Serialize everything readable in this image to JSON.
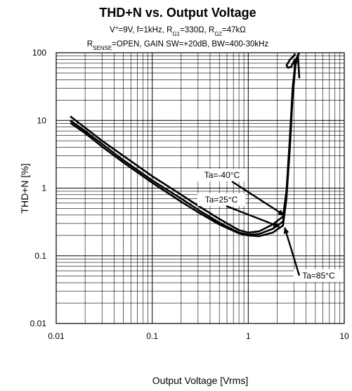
{
  "chart_data": {
    "type": "line",
    "title": "THD+N vs. Output Voltage",
    "subtitle1": {
      "p1": "V",
      "p1sup": "+",
      "p2": "=9V, f=1kHz, R",
      "p2sub": "G1",
      "p3": "=330Ω, R",
      "p3sub": "G2",
      "p4": "=47kΩ"
    },
    "subtitle2": {
      "p1": "R",
      "p1sub": "SENSE",
      "p2": "=OPEN, GAIN SW=+20dB, BW=400-30kHz"
    },
    "xlabel": "Output Voltage [Vrms]",
    "ylabel": "THD+N [%]",
    "xscale": "log",
    "yscale": "log",
    "xlim": [
      0.01,
      10
    ],
    "ylim": [
      0.01,
      100
    ],
    "grid": true,
    "x_tick_labels": [
      "0.01",
      "0.1",
      "1",
      "10"
    ],
    "y_tick_labels": [
      "0.01",
      "0.1",
      "1",
      "10",
      "100"
    ],
    "x_ticks": [
      0.01,
      0.1,
      1,
      10
    ],
    "y_ticks": [
      0.01,
      0.1,
      1,
      10,
      100
    ],
    "series": [
      {
        "name": "Ta=-40°C",
        "points": [
          [
            0.014,
            11.5
          ],
          [
            0.02,
            7.8
          ],
          [
            0.03,
            5.0
          ],
          [
            0.05,
            3.0
          ],
          [
            0.1,
            1.5
          ],
          [
            0.2,
            0.8
          ],
          [
            0.3,
            0.55
          ],
          [
            0.5,
            0.35
          ],
          [
            0.8,
            0.24
          ],
          [
            1.0,
            0.22
          ],
          [
            1.3,
            0.23
          ],
          [
            1.8,
            0.29
          ],
          [
            2.3,
            0.38
          ],
          [
            2.5,
            0.9
          ],
          [
            2.7,
            5.0
          ],
          [
            2.9,
            30.0
          ],
          [
            3.1,
            75.0
          ],
          [
            3.4,
            100.0
          ]
        ]
      },
      {
        "name": "Ta=25°C",
        "points": [
          [
            0.014,
            10.0
          ],
          [
            0.02,
            7.0
          ],
          [
            0.03,
            4.5
          ],
          [
            0.05,
            2.6
          ],
          [
            0.1,
            1.3
          ],
          [
            0.2,
            0.7
          ],
          [
            0.3,
            0.48
          ],
          [
            0.5,
            0.31
          ],
          [
            0.8,
            0.22
          ],
          [
            1.0,
            0.205
          ],
          [
            1.3,
            0.21
          ],
          [
            1.8,
            0.25
          ],
          [
            2.3,
            0.32
          ],
          [
            2.5,
            0.8
          ],
          [
            2.7,
            4.0
          ],
          [
            2.9,
            25.0
          ],
          [
            3.1,
            70.0
          ],
          [
            3.3,
            95.0
          ]
        ]
      },
      {
        "name": "Ta=85°C",
        "points": [
          [
            0.014,
            9.2
          ],
          [
            0.02,
            6.5
          ],
          [
            0.03,
            4.1
          ],
          [
            0.05,
            2.4
          ],
          [
            0.1,
            1.2
          ],
          [
            0.2,
            0.63
          ],
          [
            0.3,
            0.44
          ],
          [
            0.5,
            0.29
          ],
          [
            0.8,
            0.215
          ],
          [
            1.0,
            0.2
          ],
          [
            1.3,
            0.195
          ],
          [
            1.8,
            0.22
          ],
          [
            2.3,
            0.28
          ],
          [
            2.5,
            0.7
          ],
          [
            2.7,
            3.5
          ],
          [
            2.9,
            22.0
          ],
          [
            3.1,
            65.0
          ],
          [
            3.3,
            90.0
          ]
        ]
      }
    ],
    "overload_hook": [
      [
        3.4,
        42.0
      ],
      [
        3.3,
        88.0
      ],
      [
        3.0,
        75.0
      ],
      [
        2.8,
        62.0
      ],
      [
        2.6,
        60.0
      ],
      [
        2.5,
        65.0
      ],
      [
        2.7,
        78.0
      ],
      [
        3.1,
        96.0
      ]
    ],
    "annotations": [
      {
        "text": "Ta=-40°C",
        "target": [
          2.35,
          0.4
        ]
      },
      {
        "text": "Ta=25°C",
        "target": [
          2.1,
          0.27
        ]
      },
      {
        "text": "Ta=85°C",
        "target": [
          2.4,
          0.26
        ]
      }
    ]
  },
  "colors": {
    "line": "#000000",
    "grid": "#000000",
    "background": "#ffffff"
  }
}
